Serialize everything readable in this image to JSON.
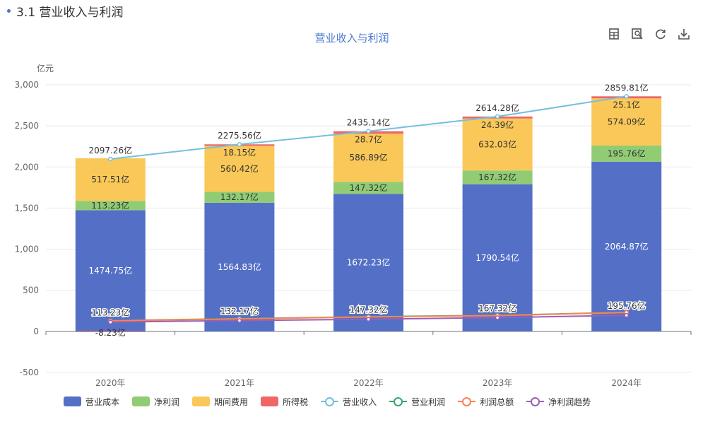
{
  "header": {
    "section_title": "3.1 营业收入与利润"
  },
  "toolbar": [
    {
      "name": "data-view-icon"
    },
    {
      "name": "zoom-icon"
    },
    {
      "name": "refresh-icon"
    },
    {
      "name": "download-icon"
    }
  ],
  "chart_data": {
    "type": "bar",
    "title": "营业收入与利润",
    "ylabel": "亿元",
    "ylim": [
      -500,
      3000
    ],
    "yticks": [
      -500,
      0,
      500,
      1000,
      1500,
      2000,
      2500,
      3000
    ],
    "ytick_labels": [
      "-500",
      "0",
      "500",
      "1,000",
      "1,500",
      "2,000",
      "2,500",
      "3,000"
    ],
    "categories": [
      "2020年",
      "2021年",
      "2022年",
      "2023年",
      "2024年"
    ],
    "legend_position": "bottom",
    "grid": true,
    "stacked_series": [
      {
        "name": "营业成本",
        "color": "#5470c6",
        "values": [
          1474.75,
          1564.83,
          1672.23,
          1790.54,
          2064.87
        ],
        "labels": [
          "1474.75亿",
          "1564.83亿",
          "1672.23亿",
          "1790.54亿",
          "2064.87亿"
        ]
      },
      {
        "name": "净利润",
        "color": "#91cc75",
        "values": [
          113.23,
          132.17,
          147.32,
          167.32,
          195.76
        ],
        "labels": [
          "113.23亿",
          "132.17亿",
          "147.32亿",
          "167.32亿",
          "195.76亿"
        ]
      },
      {
        "name": "期间费用",
        "color": "#fac858",
        "values": [
          517.51,
          560.42,
          586.89,
          632.03,
          574.09
        ],
        "labels": [
          "517.51亿",
          "560.42亿",
          "586.89亿",
          "632.03亿",
          "574.09亿"
        ]
      },
      {
        "name": "所得税",
        "color": "#ee6666",
        "values": [
          -8.23,
          18.15,
          28.7,
          24.39,
          25.1
        ],
        "labels": [
          "-8.23亿",
          "18.15亿",
          "28.7亿",
          "24.39亿",
          "25.1亿"
        ]
      }
    ],
    "line_series": [
      {
        "name": "营业收入",
        "color": "#73c0de",
        "values": [
          2097.26,
          2275.56,
          2435.14,
          2614.28,
          2859.81
        ],
        "labels": [
          "2097.26亿",
          "2275.56亿",
          "2435.14亿",
          "2614.28亿",
          "2859.81亿"
        ]
      },
      {
        "name": "营业利润",
        "color": "#3ba272",
        "values": [
          130,
          155,
          178,
          195,
          232
        ],
        "labels": []
      },
      {
        "name": "利润总额",
        "color": "#fc8452",
        "values": [
          128,
          152,
          176,
          192,
          230
        ],
        "labels": []
      },
      {
        "name": "净利润趋势",
        "color": "#9a60b4",
        "values": [
          113.23,
          132.17,
          147.32,
          167.32,
          195.76
        ],
        "labels": [
          "113.23亿",
          "132.17亿",
          "147.32亿",
          "167.32亿",
          "195.76亿"
        ]
      }
    ]
  }
}
